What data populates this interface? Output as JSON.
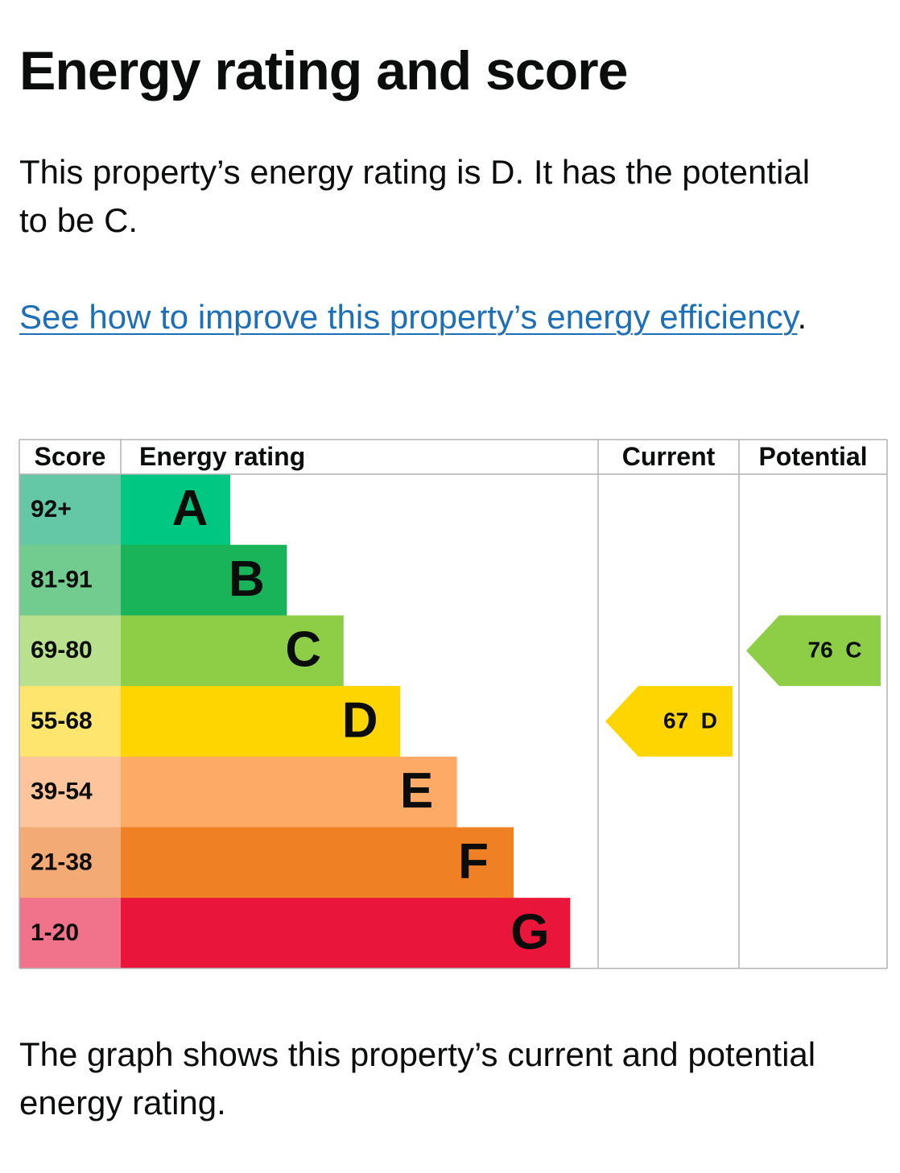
{
  "page": {
    "title": "Energy rating and score",
    "intro": "This property’s energy rating is D. It has the potential to be C.",
    "improve_link": "See how to improve this property’s energy efficiency",
    "improve_suffix": ".",
    "caption": "The graph shows this property’s current and potential energy rating."
  },
  "colors": {
    "link": "#1d70b8",
    "text": "#0b0c0c",
    "grid": "#b1b4b6"
  },
  "chart_data": {
    "type": "bar",
    "headers": {
      "score": "Score",
      "rating": "Energy rating",
      "current": "Current",
      "potential": "Potential"
    },
    "bands": [
      {
        "letter": "A",
        "score": "92+",
        "color": "#00c781",
        "score_color": "#64c7a5"
      },
      {
        "letter": "B",
        "score": "81-91",
        "color": "#19b459",
        "score_color": "#72cb8f"
      },
      {
        "letter": "C",
        "score": "69-80",
        "color": "#8dce46",
        "score_color": "#b9e08d"
      },
      {
        "letter": "D",
        "score": "55-68",
        "color": "#ffd500",
        "score_color": "#fee56e"
      },
      {
        "letter": "E",
        "score": "39-54",
        "color": "#fcaa65",
        "score_color": "#fec59c"
      },
      {
        "letter": "F",
        "score": "21-38",
        "color": "#ef8023",
        "score_color": "#f4aa74"
      },
      {
        "letter": "G",
        "score": "1-20",
        "color": "#e9153b",
        "score_color": "#f0728b"
      }
    ],
    "current": {
      "score": 67,
      "letter": "D",
      "label": "67  D"
    },
    "potential": {
      "score": 76,
      "letter": "C",
      "label": "76  C"
    }
  }
}
